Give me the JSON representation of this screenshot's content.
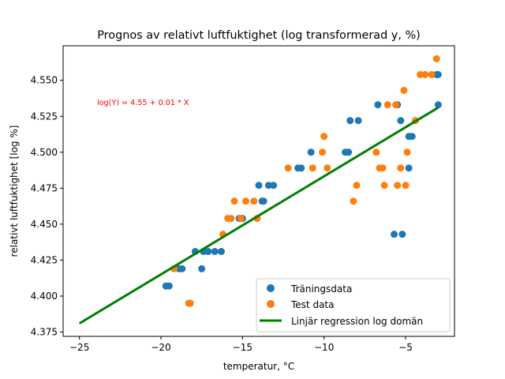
{
  "chart_data": {
    "type": "scatter",
    "title": "Prognos av relativt luftfuktighet (log transformerad y, %)",
    "xlabel": "temperatur, °C",
    "ylabel": "relativt luftfuktighet [log %]",
    "xlim": [
      -26,
      -2
    ],
    "ylim": [
      4.372,
      4.574
    ],
    "xticks": [
      -25,
      -20,
      -15,
      -10,
      -5
    ],
    "xtick_labels": [
      "−25",
      "−20",
      "−15",
      "−10",
      "−5"
    ],
    "yticks": [
      4.375,
      4.4,
      4.425,
      4.45,
      4.475,
      4.5,
      4.525,
      4.55
    ],
    "ytick_labels": [
      "4.375",
      "4.400",
      "4.425",
      "4.450",
      "4.475",
      "4.500",
      "4.525",
      "4.550"
    ],
    "grid": false,
    "legend_position": "bottom-right",
    "annotation": {
      "text": "log(Y) = 4.55 + 0.01 * X",
      "x": -24.0,
      "y": 4.533,
      "color": "#ff0000"
    },
    "series": [
      {
        "name": "Träningsdata",
        "type": "scatter",
        "color": "#1f77b4",
        "points": [
          [
            -19.7,
            4.407
          ],
          [
            -19.5,
            4.407
          ],
          [
            -18.9,
            4.419
          ],
          [
            -18.7,
            4.419
          ],
          [
            -17.9,
            4.431
          ],
          [
            -17.5,
            4.419
          ],
          [
            -17.4,
            4.431
          ],
          [
            -17.1,
            4.431
          ],
          [
            -16.7,
            4.431
          ],
          [
            -16.3,
            4.431
          ],
          [
            -15.2,
            4.454
          ],
          [
            -15.0,
            4.454
          ],
          [
            -14.0,
            4.477
          ],
          [
            -13.8,
            4.466
          ],
          [
            -13.7,
            4.466
          ],
          [
            -13.4,
            4.477
          ],
          [
            -13.1,
            4.477
          ],
          [
            -11.6,
            4.489
          ],
          [
            -11.4,
            4.489
          ],
          [
            -10.8,
            4.5
          ],
          [
            -8.7,
            4.5
          ],
          [
            -8.5,
            4.5
          ],
          [
            -8.4,
            4.522
          ],
          [
            -7.9,
            4.522
          ],
          [
            -6.7,
            4.533
          ],
          [
            -5.7,
            4.443
          ],
          [
            -5.5,
            4.533
          ],
          [
            -5.3,
            4.522
          ],
          [
            -5.2,
            4.443
          ],
          [
            -4.8,
            4.511
          ],
          [
            -4.8,
            4.489
          ],
          [
            -4.6,
            4.511
          ],
          [
            -3.1,
            4.554
          ],
          [
            -3.0,
            4.554
          ],
          [
            -3.0,
            4.533
          ]
        ]
      },
      {
        "name": "Test data",
        "type": "scatter",
        "color": "#ff7f0e",
        "points": [
          [
            -19.2,
            4.419
          ],
          [
            -18.3,
            4.395
          ],
          [
            -18.2,
            4.395
          ],
          [
            -16.2,
            4.443
          ],
          [
            -15.9,
            4.454
          ],
          [
            -15.7,
            4.454
          ],
          [
            -15.5,
            4.466
          ],
          [
            -15.1,
            4.454
          ],
          [
            -14.8,
            4.466
          ],
          [
            -14.3,
            4.466
          ],
          [
            -14.1,
            4.454
          ],
          [
            -12.2,
            4.489
          ],
          [
            -10.7,
            4.489
          ],
          [
            -10.1,
            4.5
          ],
          [
            -10.0,
            4.511
          ],
          [
            -9.8,
            4.489
          ],
          [
            -8.2,
            4.466
          ],
          [
            -8.0,
            4.477
          ],
          [
            -6.8,
            4.5
          ],
          [
            -6.6,
            4.489
          ],
          [
            -6.4,
            4.489
          ],
          [
            -6.3,
            4.477
          ],
          [
            -6.1,
            4.533
          ],
          [
            -5.6,
            4.533
          ],
          [
            -5.5,
            4.477
          ],
          [
            -5.3,
            4.489
          ],
          [
            -5.1,
            4.543
          ],
          [
            -5.0,
            4.477
          ],
          [
            -4.9,
            4.5
          ],
          [
            -4.4,
            4.522
          ],
          [
            -4.1,
            4.554
          ],
          [
            -3.8,
            4.554
          ],
          [
            -3.4,
            4.554
          ],
          [
            -3.1,
            4.565
          ]
        ]
      },
      {
        "name": "Linjär regression log domän",
        "type": "line",
        "color": "#008000",
        "points": [
          [
            -25,
            4.381
          ],
          [
            -3,
            4.531
          ]
        ]
      }
    ]
  }
}
